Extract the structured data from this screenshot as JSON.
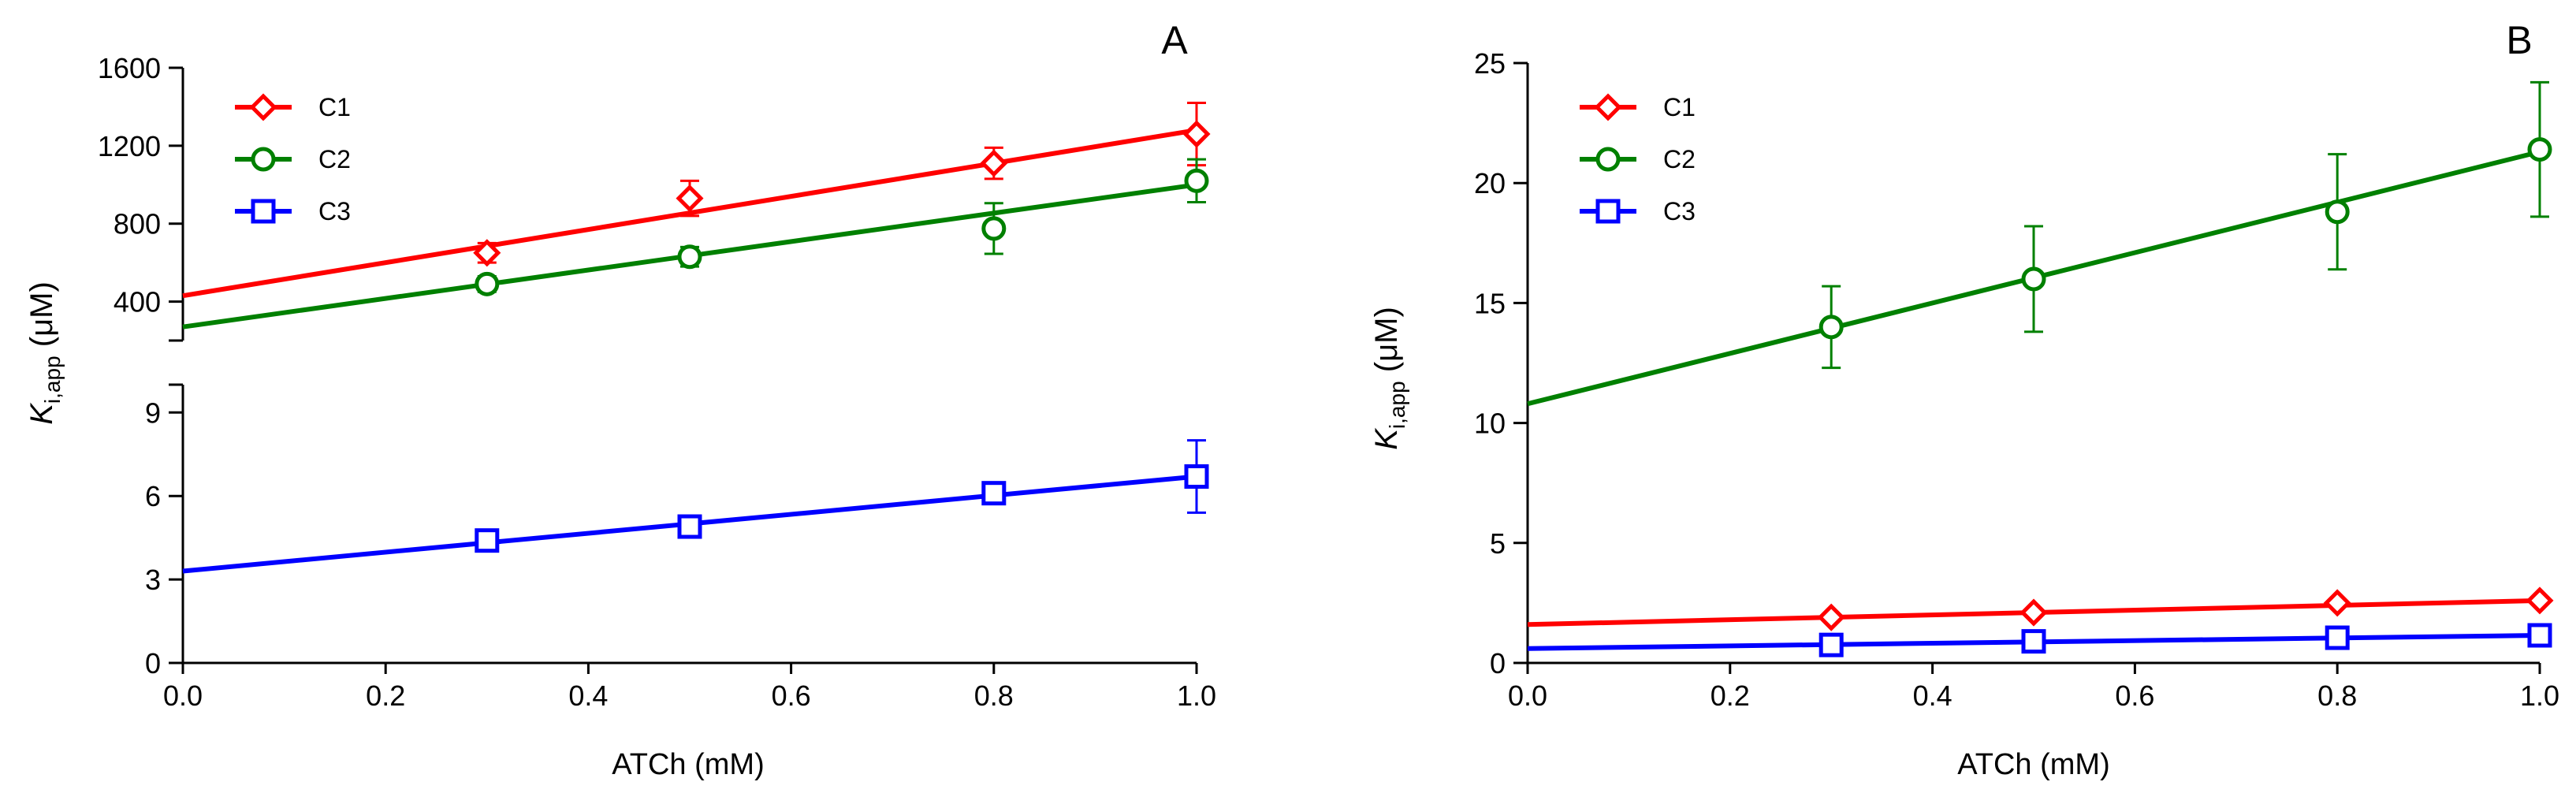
{
  "panels": [
    {
      "label": "A",
      "xlabel": "ATCh (mM)",
      "ylabel_main": "K",
      "ylabel_sub": "i,app",
      "ylabel_unit": " (μM)"
    },
    {
      "label": "B",
      "xlabel": "ATCh (mM)",
      "ylabel_main": "K",
      "ylabel_sub": "i,app",
      "ylabel_unit": " (μM)"
    }
  ],
  "chart_data": [
    {
      "panel": "A",
      "type": "scatter",
      "xlabel": "ATCh (mM)",
      "ylabel": "Ki,app (μM)",
      "axis_break": true,
      "xlim": [
        0,
        1.0
      ],
      "xticks": [
        "0.0",
        "0.2",
        "0.4",
        "0.6",
        "0.8",
        "1.0"
      ],
      "upper_segment": {
        "ylim": [
          200,
          1600
        ],
        "yticks": [
          "400",
          "800",
          "1200",
          "1600"
        ]
      },
      "lower_segment": {
        "ylim": [
          0,
          10
        ],
        "yticks": [
          "0",
          "3",
          "6",
          "9"
        ]
      },
      "legend_position": "top-left",
      "series": [
        {
          "name": "C1",
          "marker": "diamond",
          "color": "#ff0000",
          "segment": "upper",
          "x": [
            0.3,
            0.5,
            0.8,
            1.0
          ],
          "y": [
            650,
            930,
            1110,
            1260
          ],
          "err": [
            50,
            90,
            80,
            160
          ],
          "fit": {
            "intercept": 430,
            "slope": 850
          }
        },
        {
          "name": "C2",
          "marker": "circle",
          "color": "#008000",
          "segment": "upper",
          "x": [
            0.3,
            0.5,
            0.8,
            1.0
          ],
          "y": [
            490,
            630,
            775,
            1020
          ],
          "err": [
            40,
            50,
            130,
            110
          ],
          "fit": {
            "intercept": 270,
            "slope": 730
          }
        },
        {
          "name": "C3",
          "marker": "square",
          "color": "#0000ff",
          "segment": "lower",
          "x": [
            0.3,
            0.5,
            0.8,
            1.0
          ],
          "y": [
            4.4,
            4.9,
            6.1,
            6.7
          ],
          "err": [
            0.2,
            0.2,
            0.2,
            1.3
          ],
          "fit": {
            "intercept": 3.3,
            "slope": 3.4
          }
        }
      ]
    },
    {
      "panel": "B",
      "type": "scatter",
      "xlabel": "ATCh (mM)",
      "ylabel": "Ki,app (μM)",
      "xlim": [
        0,
        1.0
      ],
      "xticks": [
        "0.0",
        "0.2",
        "0.4",
        "0.6",
        "0.8",
        "1.0"
      ],
      "ylim": [
        0,
        25
      ],
      "yticks": [
        "0",
        "5",
        "10",
        "15",
        "20",
        "25"
      ],
      "legend_position": "top-left",
      "series": [
        {
          "name": "C1",
          "marker": "diamond",
          "color": "#ff0000",
          "x": [
            0.3,
            0.5,
            0.8,
            1.0
          ],
          "y": [
            1.9,
            2.1,
            2.5,
            2.6
          ],
          "err": [
            0.1,
            0.1,
            0.1,
            0.1
          ],
          "fit": {
            "intercept": 1.6,
            "slope": 1.0
          }
        },
        {
          "name": "C2",
          "marker": "circle",
          "color": "#008000",
          "x": [
            0.3,
            0.5,
            0.8,
            1.0
          ],
          "y": [
            14.0,
            16.0,
            18.8,
            21.4
          ],
          "err": [
            1.7,
            2.2,
            2.4,
            2.8
          ],
          "fit": {
            "intercept": 10.8,
            "slope": 10.5
          }
        },
        {
          "name": "C3",
          "marker": "square",
          "color": "#0000ff",
          "x": [
            0.3,
            0.5,
            0.8,
            1.0
          ],
          "y": [
            0.75,
            0.9,
            1.05,
            1.15
          ],
          "err": [
            0.1,
            0.1,
            0.1,
            0.1
          ],
          "fit": {
            "intercept": 0.6,
            "slope": 0.55
          }
        }
      ]
    }
  ]
}
